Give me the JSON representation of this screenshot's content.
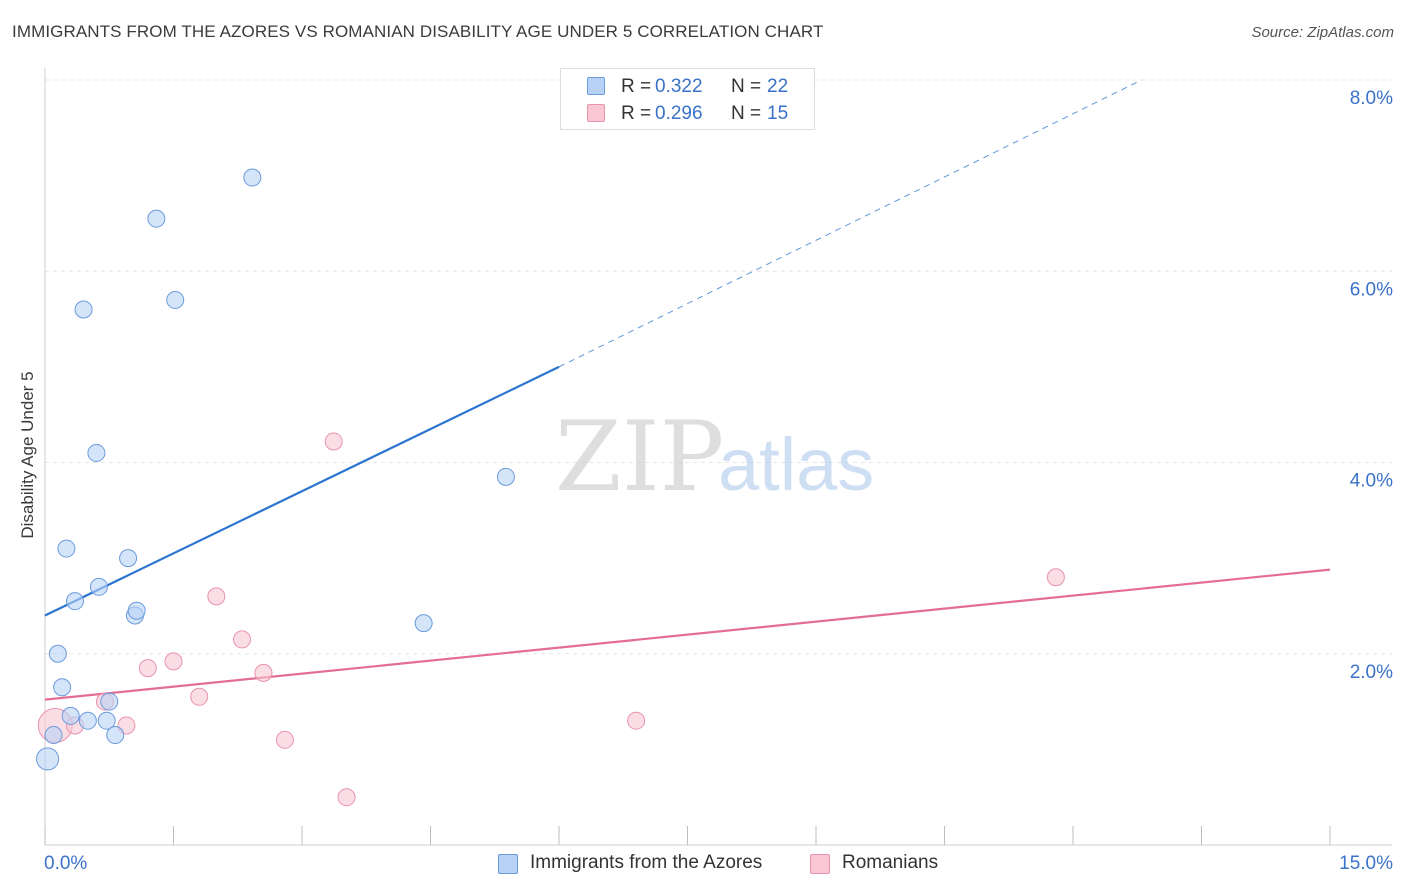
{
  "title": "IMMIGRANTS FROM THE AZORES VS ROMANIAN DISABILITY AGE UNDER 5 CORRELATION CHART",
  "source": "Source: ZipAtlas.com",
  "watermark": {
    "zip": "ZIP",
    "atlas": "atlas"
  },
  "legend": {
    "r_label": "R =",
    "n_label": "N =",
    "rows": [
      {
        "r": "0.322",
        "n": "22"
      },
      {
        "r": "0.296",
        "n": "15"
      }
    ]
  },
  "colors": {
    "azores_fill": "#b8d2f5",
    "azores_stroke": "#6b9bdc",
    "azores_line": "#2b74d0",
    "romanian_fill": "#f9c6d4",
    "romanian_stroke": "#e993ad",
    "romanian_line": "#e36d96",
    "tick_label": "#3a72c9",
    "grid": "#e6e6e6"
  },
  "chart_data": {
    "type": "scatter",
    "title": "IMMIGRANTS FROM THE AZORES VS ROMANIAN DISABILITY AGE UNDER 5 CORRELATION CHART",
    "xlabel": "",
    "ylabel": "Disability Age Under 5",
    "xlim": [
      0,
      15
    ],
    "ylim": [
      0,
      8
    ],
    "x_tick_labels": [
      "0.0%",
      "15.0%"
    ],
    "y_ticks": [
      2,
      4,
      6,
      8
    ],
    "y_tick_labels": [
      "2.0%",
      "4.0%",
      "6.0%",
      "8.0%"
    ],
    "legend_position": "bottom-center",
    "series": [
      {
        "name": "Immigrants from the Azores",
        "r": 0.322,
        "n": 22,
        "trend": {
          "x0": 0,
          "y0": 2.4,
          "x1": 6.0,
          "y1": 5.0,
          "dash_to_x": 12.8,
          "dash_to_y": 8.0
        },
        "points": [
          {
            "x": 0.03,
            "y": 0.9,
            "size": 1.3
          },
          {
            "x": 0.1,
            "y": 1.15
          },
          {
            "x": 0.15,
            "y": 2.0
          },
          {
            "x": 0.2,
            "y": 1.65
          },
          {
            "x": 0.25,
            "y": 3.1
          },
          {
            "x": 0.3,
            "y": 1.35
          },
          {
            "x": 0.35,
            "y": 2.55
          },
          {
            "x": 0.45,
            "y": 5.6
          },
          {
            "x": 0.5,
            "y": 1.3
          },
          {
            "x": 0.6,
            "y": 4.1
          },
          {
            "x": 0.63,
            "y": 2.7
          },
          {
            "x": 0.72,
            "y": 1.3
          },
          {
            "x": 0.75,
            "y": 1.5
          },
          {
            "x": 0.82,
            "y": 1.15
          },
          {
            "x": 0.97,
            "y": 3.0
          },
          {
            "x": 1.05,
            "y": 2.4
          },
          {
            "x": 1.07,
            "y": 2.45
          },
          {
            "x": 1.3,
            "y": 6.55
          },
          {
            "x": 1.52,
            "y": 5.7
          },
          {
            "x": 2.42,
            "y": 6.98
          },
          {
            "x": 4.42,
            "y": 2.32
          },
          {
            "x": 5.38,
            "y": 3.85
          }
        ]
      },
      {
        "name": "Romanians",
        "r": 0.296,
        "n": 15,
        "trend": {
          "x0": 0,
          "y0": 1.52,
          "x1": 15,
          "y1": 2.88
        },
        "points": [
          {
            "x": 0.12,
            "y": 1.25,
            "size": 2.0
          },
          {
            "x": 0.35,
            "y": 1.25
          },
          {
            "x": 0.7,
            "y": 1.5
          },
          {
            "x": 0.95,
            "y": 1.25
          },
          {
            "x": 1.2,
            "y": 1.85
          },
          {
            "x": 1.5,
            "y": 1.92
          },
          {
            "x": 1.8,
            "y": 1.55
          },
          {
            "x": 2.0,
            "y": 2.6
          },
          {
            "x": 2.3,
            "y": 2.15
          },
          {
            "x": 2.55,
            "y": 1.8
          },
          {
            "x": 2.8,
            "y": 1.1
          },
          {
            "x": 3.37,
            "y": 4.22
          },
          {
            "x": 3.52,
            "y": 0.5
          },
          {
            "x": 6.9,
            "y": 1.3
          },
          {
            "x": 11.8,
            "y": 2.8
          }
        ]
      }
    ]
  }
}
